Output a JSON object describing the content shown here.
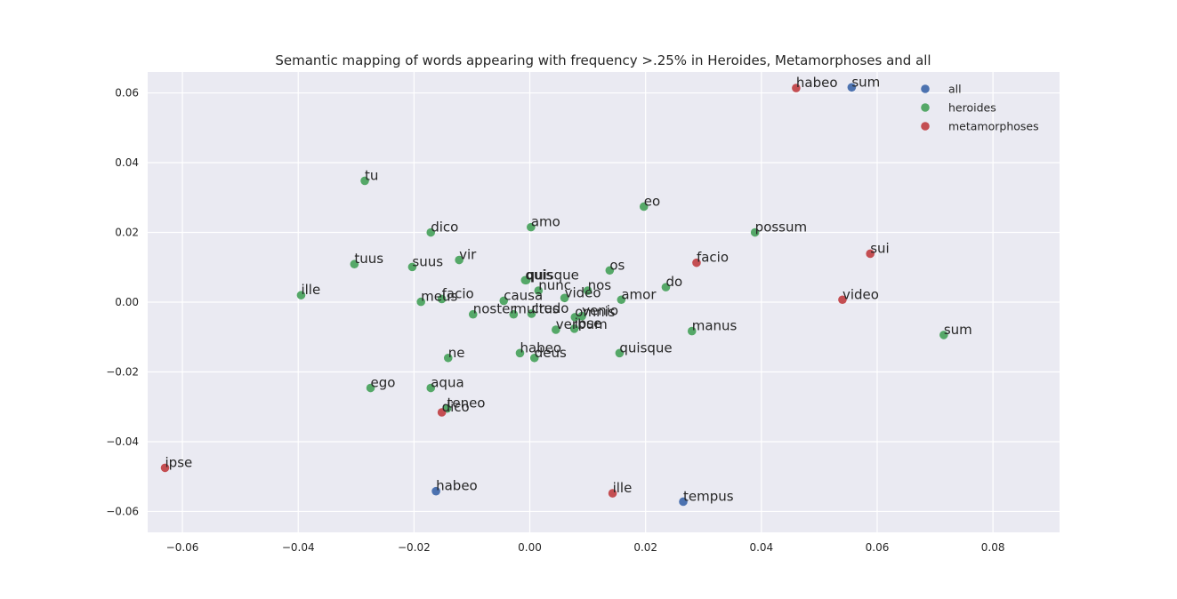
{
  "chart_data": {
    "type": "scatter",
    "title": "Semantic mapping of words appearing with frequency >.25% in Heroides, Metamorphoses and all",
    "xlabel": "",
    "ylabel": "",
    "xlim": [
      -0.066,
      0.0915
    ],
    "ylim": [
      -0.066,
      0.066
    ],
    "x_ticks": [
      -0.06,
      -0.04,
      -0.02,
      0.0,
      0.02,
      0.04,
      0.06,
      0.08
    ],
    "x_tick_labels": [
      "−0.06",
      "−0.04",
      "−0.02",
      "0.00",
      "0.02",
      "0.04",
      "0.06",
      "0.08"
    ],
    "y_ticks": [
      -0.06,
      -0.04,
      -0.02,
      0.0,
      0.02,
      0.04,
      0.06
    ],
    "y_tick_labels": [
      "−0.06",
      "−0.04",
      "−0.02",
      "0.00",
      "0.02",
      "0.04",
      "0.06"
    ],
    "grid": true,
    "legend_position": "top-right",
    "series": [
      {
        "name": "all",
        "color": "#4c72b0",
        "points": [
          {
            "label": "sum",
            "x": 0.0556,
            "y": 0.0616
          },
          {
            "label": "habeo",
            "x": -0.0162,
            "y": -0.0542
          },
          {
            "label": "tempus",
            "x": 0.0265,
            "y": -0.0572
          }
        ]
      },
      {
        "name": "heroides",
        "color": "#55a868",
        "points": [
          {
            "label": "tu",
            "x": -0.0285,
            "y": 0.0348
          },
          {
            "label": "eo",
            "x": 0.0197,
            "y": 0.0274
          },
          {
            "label": "amo",
            "x": 0.0002,
            "y": 0.0215
          },
          {
            "label": "dico",
            "x": -0.0171,
            "y": 0.02
          },
          {
            "label": "possum",
            "x": 0.0389,
            "y": 0.02
          },
          {
            "label": "vir",
            "x": -0.0122,
            "y": 0.0121
          },
          {
            "label": "tuus",
            "x": -0.0303,
            "y": 0.0109
          },
          {
            "label": "suus",
            "x": -0.0203,
            "y": 0.0101
          },
          {
            "label": "os",
            "x": 0.0138,
            "y": 0.0091
          },
          {
            "label": "quis",
            "x": -0.0008,
            "y": 0.0063
          },
          {
            "label": "quisque",
            "x": -0.0006,
            "y": 0.0063
          },
          {
            "label": "nunc",
            "x": 0.0015,
            "y": 0.0033
          },
          {
            "label": "nos",
            "x": 0.01,
            "y": 0.0033
          },
          {
            "label": "do",
            "x": 0.0235,
            "y": 0.0043
          },
          {
            "label": "ille",
            "x": -0.0395,
            "y": 0.002
          },
          {
            "label": "meus",
            "x": -0.0188,
            "y": 0.0001
          },
          {
            "label": "facio",
            "x": -0.0152,
            "y": 0.0009
          },
          {
            "label": "causa",
            "x": -0.0045,
            "y": 0.0004
          },
          {
            "label": "video",
            "x": 0.006,
            "y": 0.0012
          },
          {
            "label": "amor",
            "x": 0.0158,
            "y": 0.0007
          },
          {
            "label": "noster",
            "x": -0.0098,
            "y": -0.0035
          },
          {
            "label": "multus",
            "x": -0.0028,
            "y": -0.0035
          },
          {
            "label": "credo",
            "x": 0.0003,
            "y": -0.0033
          },
          {
            "label": "omnis",
            "x": 0.0078,
            "y": -0.0043
          },
          {
            "label": "venio",
            "x": 0.009,
            "y": -0.004
          },
          {
            "label": "verbum",
            "x": 0.0045,
            "y": -0.0079
          },
          {
            "label": "ipse",
            "x": 0.0077,
            "y": -0.0076
          },
          {
            "label": "manus",
            "x": 0.028,
            "y": -0.0083
          },
          {
            "label": "sum",
            "x": 0.0715,
            "y": -0.0094
          },
          {
            "label": "habeo",
            "x": -0.0017,
            "y": -0.0146
          },
          {
            "label": "deus",
            "x": 0.0008,
            "y": -0.016
          },
          {
            "label": "quisque",
            "x": 0.0155,
            "y": -0.0146
          },
          {
            "label": "ne",
            "x": -0.0141,
            "y": -0.016
          },
          {
            "label": "ego",
            "x": -0.0275,
            "y": -0.0246
          },
          {
            "label": "aqua",
            "x": -0.0171,
            "y": -0.0246
          },
          {
            "label": "teneo",
            "x": -0.0143,
            "y": -0.0305
          }
        ]
      },
      {
        "name": "metamorphoses",
        "color": "#c44e52",
        "points": [
          {
            "label": "habeo",
            "x": 0.046,
            "y": 0.0614
          },
          {
            "label": "sui",
            "x": 0.0588,
            "y": 0.0139
          },
          {
            "label": "facio",
            "x": 0.0288,
            "y": 0.0113
          },
          {
            "label": "video",
            "x": 0.054,
            "y": 0.0007
          },
          {
            "label": "dico",
            "x": -0.0152,
            "y": -0.0316
          },
          {
            "label": "ipse",
            "x": -0.063,
            "y": -0.0475
          },
          {
            "label": "ille",
            "x": 0.0143,
            "y": -0.0548
          }
        ]
      }
    ]
  }
}
